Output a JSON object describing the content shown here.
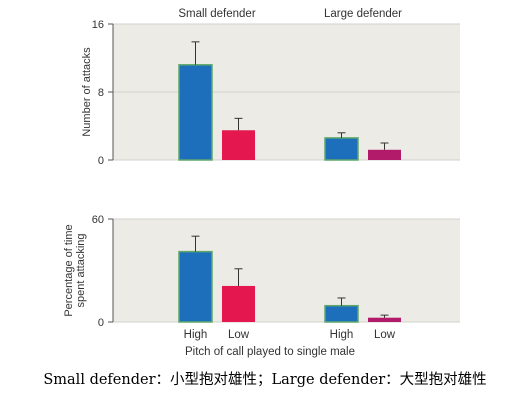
{
  "colors": {
    "panel": "#edebe6",
    "grid": "#d2d1cb",
    "axis": "#555555",
    "text": "#333333",
    "high_bar": "#1e6fbb",
    "high_bar_border": "#5fa86a",
    "low_bar": "#e4174f",
    "large_low_bar": "#b21a6a",
    "error_bar": "#333333"
  },
  "xlabel": "Pitch of call played to single male",
  "caption": "Small defender：小型抱对雄性；Large defender：大型抱对雄性",
  "chart_data": [
    {
      "type": "bar",
      "title": "",
      "ylabel": "Number of attacks",
      "ylim": [
        0,
        16
      ],
      "yticks": [
        0,
        8,
        16
      ],
      "group_labels": [
        "Small defender",
        "Large defender"
      ],
      "categories": [
        "High",
        "Low"
      ],
      "show_category_labels": false,
      "grid": true,
      "series": [
        {
          "group": "Small defender",
          "values": [
            11.2,
            3.5
          ],
          "errors": [
            2.7,
            1.4
          ]
        },
        {
          "group": "Large defender",
          "values": [
            2.6,
            1.2
          ],
          "errors": [
            0.6,
            0.8
          ]
        }
      ]
    },
    {
      "type": "bar",
      "title": "",
      "ylabel": "Percentage of time spent attacking",
      "ylabel_lines": [
        "Percentage of time",
        "spent attacking"
      ],
      "ylim": [
        0,
        60
      ],
      "yticks": [
        0,
        60
      ],
      "group_labels": [],
      "categories": [
        "High",
        "Low"
      ],
      "show_category_labels": true,
      "grid": true,
      "series": [
        {
          "group": "Small defender",
          "values": [
            41,
            21
          ],
          "errors": [
            9,
            10
          ]
        },
        {
          "group": "Large defender",
          "values": [
            9.5,
            2.5
          ],
          "errors": [
            4.5,
            1.5
          ]
        }
      ]
    }
  ]
}
